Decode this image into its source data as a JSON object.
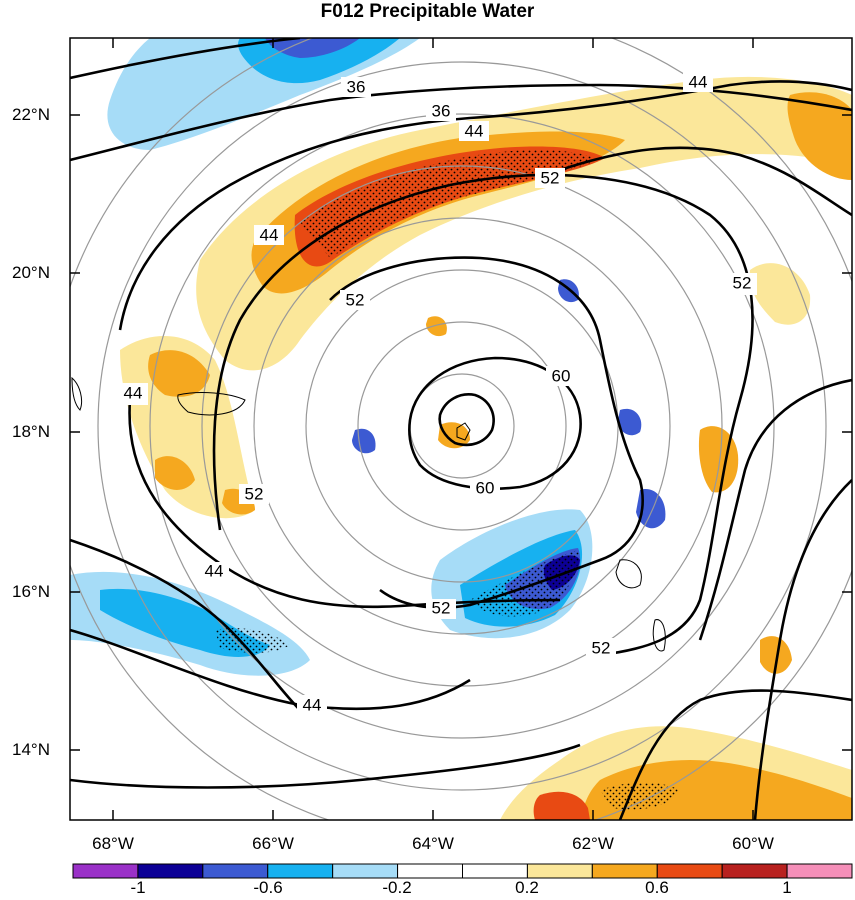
{
  "title": "F012 Precipitable Water",
  "latitude_labels": [
    "22°N",
    "20°N",
    "18°N",
    "16°N",
    "14°N"
  ],
  "longitude_labels": [
    "68°W",
    "66°W",
    "64°W",
    "62°W",
    "60°W"
  ],
  "contour_labels": [
    "36",
    "36",
    "44",
    "44",
    "44",
    "44",
    "44",
    "44",
    "52",
    "52",
    "52",
    "52",
    "52",
    "52",
    "60",
    "60"
  ],
  "colorbar": {
    "colors": [
      "#9a31c8",
      "#0c0096",
      "#3c5ad2",
      "#17b1f0",
      "#a6dcf7",
      "#ffffff",
      "#ffffff",
      "#fbe79a",
      "#f5a81f",
      "#e84a13",
      "#b8211f",
      "#f58fb9"
    ],
    "tick_labels": [
      "-1",
      "-0.6",
      "-0.2",
      "0.2",
      "0.6",
      "1"
    ]
  },
  "colors": {
    "contour": "#000000",
    "range_ring": "#999999"
  }
}
